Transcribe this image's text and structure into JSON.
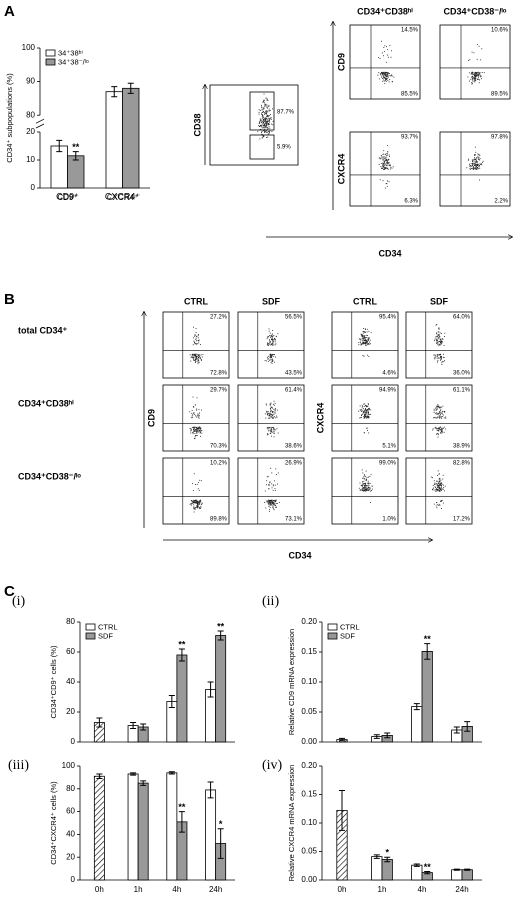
{
  "panels": [
    "A",
    "B",
    "C"
  ],
  "chart_data": [
    {
      "type": "bar",
      "y_label": "CD34⁺ subpopulations (%)",
      "categories": [
        "CD9⁺",
        "CXCR4⁺"
      ],
      "series": [
        {
          "name": "34⁺38ʰⁱ",
          "color": "#ffffff",
          "values": [
            15,
            87
          ],
          "errors": [
            2,
            1.5
          ]
        },
        {
          "name": "34⁺38⁻/ˡᵒ",
          "color": "#999999",
          "values": [
            11.5,
            88
          ],
          "errors": [
            1.5,
            1.5
          ]
        }
      ],
      "ylim": [
        0,
        100
      ],
      "ybreak": [
        20,
        80
      ],
      "yticks": [
        0,
        10,
        20,
        80,
        90,
        100
      ],
      "legend": "upper left",
      "annotations": [
        {
          "text": "**",
          "series": 1,
          "index": 0
        }
      ]
    },
    {
      "type": "bar",
      "label": "(i)",
      "y_label": "CD34⁺CD9⁺ cells (%)",
      "series": [
        {
          "pattern": "hatch",
          "color": "#ffffff",
          "values": [
            13,
            null,
            null,
            null
          ],
          "errors": [
            3,
            null,
            null,
            null
          ]
        },
        {
          "name": "CTRL",
          "color": "#ffffff",
          "values": [
            null,
            11,
            27,
            35
          ],
          "errors": [
            null,
            2,
            4,
            5
          ]
        },
        {
          "name": "SDF",
          "color": "#999999",
          "values": [
            null,
            10,
            58,
            71
          ],
          "errors": [
            null,
            2,
            4,
            3
          ]
        }
      ],
      "ylim": [
        0,
        80
      ],
      "yticks": [
        0,
        20,
        40,
        60,
        80
      ],
      "legend": "upper left",
      "annotations": [
        {
          "text": "**",
          "series": 2,
          "index": 2
        },
        {
          "text": "**",
          "series": 2,
          "index": 3
        }
      ]
    },
    {
      "type": "bar",
      "label": "(ii)",
      "y_label": "Relative CD9 mRNA expression",
      "series": [
        {
          "pattern": "hatch",
          "color": "#ffffff",
          "values": [
            0.004,
            null,
            null,
            null
          ],
          "errors": [
            0.002,
            null,
            null,
            null
          ]
        },
        {
          "name": "CTRL",
          "color": "#ffffff",
          "values": [
            null,
            0.009,
            0.059,
            0.02
          ],
          "errors": [
            null,
            0.003,
            0.005,
            0.005
          ]
        },
        {
          "name": "SDF",
          "color": "#999999",
          "values": [
            null,
            0.011,
            0.151,
            0.026
          ],
          "errors": [
            null,
            0.004,
            0.013,
            0.008
          ]
        }
      ],
      "ylim": [
        0,
        0.2
      ],
      "yticks": [
        {
          "value": 0,
          "label": "0.00"
        },
        {
          "value": 0.05,
          "label": "0.05"
        },
        {
          "value": 0.1,
          "label": "0.10"
        },
        {
          "value": 0.15,
          "label": "0.15"
        },
        {
          "value": 0.2,
          "label": "0.20"
        }
      ],
      "legend": "upper left",
      "annotations": [
        {
          "text": "**",
          "series": 2,
          "index": 2
        }
      ]
    },
    {
      "type": "bar",
      "label": "(iii)",
      "y_label": "CD34⁺CXCR4⁺ cells (%)",
      "categories": [
        "0h",
        "1h",
        "4h",
        "24h"
      ],
      "series": [
        {
          "pattern": "hatch",
          "color": "#ffffff",
          "values": [
            91,
            null,
            null,
            null
          ],
          "errors": [
            2,
            null,
            null,
            null
          ]
        },
        {
          "color": "#ffffff",
          "values": [
            null,
            93,
            94,
            79
          ],
          "errors": [
            null,
            1,
            1,
            7
          ]
        },
        {
          "color": "#999999",
          "values": [
            null,
            85,
            51,
            32
          ],
          "errors": [
            null,
            2,
            9,
            13
          ]
        }
      ],
      "ylim": [
        0,
        100
      ],
      "yticks": [
        0,
        20,
        40,
        60,
        80,
        100
      ],
      "annotations": [
        {
          "text": "**",
          "series": 2,
          "index": 2
        },
        {
          "text": "*",
          "series": 2,
          "index": 3
        }
      ]
    },
    {
      "type": "bar",
      "label": "(iv)",
      "y_label": "Relative CXCR4 mRNA expression",
      "categories": [
        "0h",
        "1h",
        "4h",
        "24h"
      ],
      "series": [
        {
          "pattern": "hatch",
          "color": "#ffffff",
          "values": [
            0.122,
            null,
            null,
            null
          ],
          "errors": [
            0.035,
            null,
            null,
            null
          ]
        },
        {
          "color": "#ffffff",
          "values": [
            null,
            0.041,
            0.026,
            0.018
          ],
          "errors": [
            null,
            0.003,
            0.002,
            0.001
          ]
        },
        {
          "color": "#999999",
          "values": [
            null,
            0.036,
            0.013,
            0.018
          ],
          "errors": [
            null,
            0.004,
            0.002,
            0.001
          ]
        }
      ],
      "ylim": [
        0,
        0.2
      ],
      "yticks": [
        {
          "value": 0,
          "label": "0.00"
        },
        {
          "value": 0.05,
          "label": "0.05"
        },
        {
          "value": 0.1,
          "label": "0.10"
        },
        {
          "value": 0.15,
          "label": "0.15"
        },
        {
          "value": 0.2,
          "label": "0.20"
        }
      ],
      "annotations": [
        {
          "text": "*",
          "series": 2,
          "index": 1
        },
        {
          "text": "**",
          "series": 2,
          "index": 2
        }
      ]
    }
  ],
  "flow_a": {
    "gate_y_label": "CD38",
    "gates": [
      "87.7%",
      "5.9%"
    ],
    "columns": [
      "CD34⁺CD38ʰⁱ",
      "CD34⁺CD38⁻/ˡᵒ"
    ],
    "rows": [
      {
        "label": "CD9",
        "cells": [
          [
            "14.5%",
            "85.5%"
          ],
          [
            "10.6%",
            "89.5%"
          ]
        ]
      },
      {
        "label": "CXCR4",
        "cells": [
          [
            "93.7%",
            "6.3%"
          ],
          [
            "97.8%",
            "2.2%"
          ]
        ]
      }
    ],
    "x_label": "CD34"
  },
  "flow_b": {
    "columns": [
      "CTRL",
      "SDF",
      "CTRL",
      "SDF"
    ],
    "markers": [
      "CD9",
      "CXCR4"
    ],
    "rows": [
      {
        "label": "total CD34⁺",
        "cells": [
          [
            "27.2%",
            "72.8%"
          ],
          [
            "56.5%",
            "43.5%"
          ],
          [
            "95.4%",
            "4.6%"
          ],
          [
            "64.0%",
            "36.0%"
          ]
        ]
      },
      {
        "label": "CD34⁺CD38ʰⁱ",
        "cells": [
          [
            "29.7%",
            "70.3%"
          ],
          [
            "61.4%",
            "38.6%"
          ],
          [
            "94.9%",
            "5.1%"
          ],
          [
            "61.1%",
            "38.9%"
          ]
        ]
      },
      {
        "label": "CD34⁺CD38⁻/ˡᵒ",
        "cells": [
          [
            "10.2%",
            "89.8%"
          ],
          [
            "26.9%",
            "73.1%"
          ],
          [
            "99.0%",
            "1.0%"
          ],
          [
            "82.8%",
            "17.2%"
          ]
        ]
      }
    ],
    "x_label": "CD34"
  }
}
